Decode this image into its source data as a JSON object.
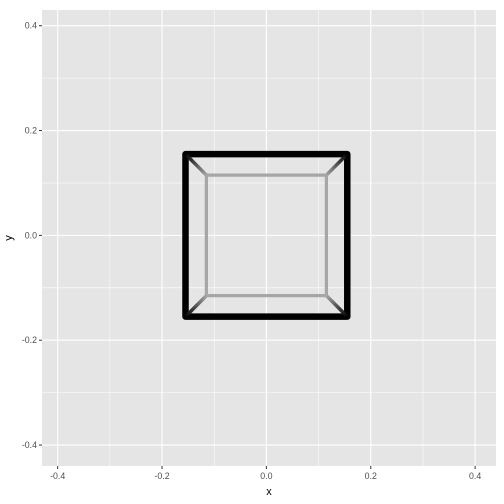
{
  "chart_data": {
    "type": "line",
    "title": "",
    "xlabel": "x",
    "ylabel": "y",
    "xlim": [
      -0.43,
      0.44
    ],
    "ylim": [
      -0.44,
      0.43
    ],
    "x_major_ticks": [
      -0.4,
      -0.2,
      0.0,
      0.2,
      0.4
    ],
    "y_major_ticks": [
      -0.4,
      -0.2,
      0.0,
      0.2,
      0.4
    ],
    "x_tick_labels": [
      "-0.4",
      "-0.2",
      "0.0",
      "0.2",
      "0.4"
    ],
    "y_tick_labels": [
      "-0.4",
      "-0.2",
      "0.0",
      "0.2",
      "0.4"
    ],
    "x_minor_ticks": [
      -0.3,
      -0.1,
      0.1,
      0.3
    ],
    "y_minor_ticks": [
      -0.3,
      -0.1,
      0.1,
      0.3
    ],
    "grid": true,
    "panel_background": "#e5e5e5",
    "grid_color": "#ffffff",
    "series": [
      {
        "name": "outer-square",
        "color": "#000000",
        "points": [
          [
            -0.155,
            0.155
          ],
          [
            0.155,
            0.155
          ],
          [
            0.155,
            -0.155
          ],
          [
            -0.155,
            -0.155
          ],
          [
            -0.155,
            0.155
          ]
        ]
      },
      {
        "name": "inner-square",
        "color": "#a6a6a6",
        "points": [
          [
            -0.115,
            0.115
          ],
          [
            0.115,
            0.115
          ],
          [
            0.115,
            -0.115
          ],
          [
            -0.115,
            -0.115
          ],
          [
            -0.115,
            0.115
          ]
        ]
      },
      {
        "name": "corner-connector-top-left",
        "color_from": "#000000",
        "color_to": "#a6a6a6",
        "points": [
          [
            -0.155,
            0.155
          ],
          [
            -0.115,
            0.115
          ]
        ]
      },
      {
        "name": "corner-connector-top-right",
        "color_from": "#000000",
        "color_to": "#a6a6a6",
        "points": [
          [
            0.155,
            0.155
          ],
          [
            0.115,
            0.115
          ]
        ]
      },
      {
        "name": "corner-connector-bottom-right",
        "color_from": "#000000",
        "color_to": "#a6a6a6",
        "points": [
          [
            0.155,
            -0.155
          ],
          [
            0.115,
            -0.115
          ]
        ]
      },
      {
        "name": "corner-connector-bottom-left",
        "color_from": "#000000",
        "color_to": "#a6a6a6",
        "points": [
          [
            -0.155,
            -0.155
          ],
          [
            -0.115,
            -0.115
          ]
        ]
      }
    ]
  }
}
